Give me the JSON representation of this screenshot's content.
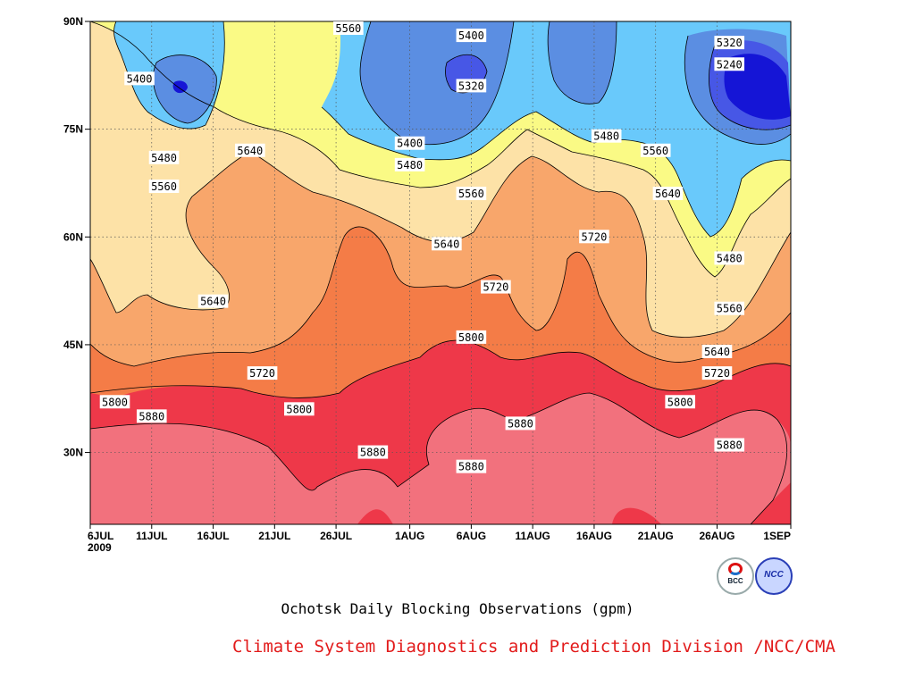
{
  "chart_data": {
    "type": "contour",
    "xlabel": "",
    "ylabel": "",
    "x_ticks": [
      "6JUL",
      "11JUL",
      "16JUL",
      "21JUL",
      "26JUL",
      "1AUG",
      "6AUG",
      "11AUG",
      "16AUG",
      "21AUG",
      "26AUG",
      "1SEP"
    ],
    "x_year_label": "2009",
    "y_ticks": [
      "90N",
      "75N",
      "60N",
      "45N",
      "30N"
    ],
    "ylim": [
      20,
      90
    ],
    "grid": true,
    "levels": [
      5240,
      5320,
      5400,
      5480,
      5560,
      5640,
      5720,
      5800,
      5880
    ],
    "band_colors": {
      "lt5240": "#1515d6",
      "5240_5320": "#4757e6",
      "5320_5400": "#5b8ee2",
      "5400_5480": "#69c9fb",
      "5480_5560": "#fafa85",
      "5560_5640": "#fde2a7",
      "5640_5720": "#f8a66b",
      "5720_5800": "#f47c47",
      "5800_5880": "#f2717d",
      "gt5880": "#ee3849"
    },
    "contour_labels": [
      {
        "text": "5400",
        "x": "10JUL",
        "y": 82
      },
      {
        "text": "5480",
        "x": "12JUL",
        "y": 71
      },
      {
        "text": "5560",
        "x": "12JUL",
        "y": 67
      },
      {
        "text": "5640",
        "x": "19JUL",
        "y": 72
      },
      {
        "text": "5640",
        "x": "16JUL",
        "y": 51
      },
      {
        "text": "5720",
        "x": "20JUL",
        "y": 41
      },
      {
        "text": "5800",
        "x": "8JUL",
        "y": 37
      },
      {
        "text": "5880",
        "x": "11JUL",
        "y": 35
      },
      {
        "text": "5800",
        "x": "23JUL",
        "y": 36
      },
      {
        "text": "5560",
        "x": "27JUL",
        "y": 89
      },
      {
        "text": "5880",
        "x": "29JUL",
        "y": 30
      },
      {
        "text": "5400",
        "x": "6AUG",
        "y": 88
      },
      {
        "text": "5320",
        "x": "6AUG",
        "y": 81
      },
      {
        "text": "5400",
        "x": "1AUG",
        "y": 73
      },
      {
        "text": "5480",
        "x": "1AUG",
        "y": 70
      },
      {
        "text": "5560",
        "x": "6AUG",
        "y": 66
      },
      {
        "text": "5640",
        "x": "4AUG",
        "y": 59
      },
      {
        "text": "5720",
        "x": "8AUG",
        "y": 53
      },
      {
        "text": "5800",
        "x": "6AUG",
        "y": 46
      },
      {
        "text": "5880",
        "x": "10AUG",
        "y": 34
      },
      {
        "text": "5880",
        "x": "6AUG",
        "y": 28
      },
      {
        "text": "5720",
        "x": "16AUG",
        "y": 60
      },
      {
        "text": "5480",
        "x": "17AUG",
        "y": 74
      },
      {
        "text": "5560",
        "x": "21AUG",
        "y": 72
      },
      {
        "text": "5640",
        "x": "22AUG",
        "y": 66
      },
      {
        "text": "5800",
        "x": "23AUG",
        "y": 37
      },
      {
        "text": "5880",
        "x": "27AUG",
        "y": 31
      },
      {
        "text": "5480",
        "x": "27AUG",
        "y": 57
      },
      {
        "text": "5560",
        "x": "27AUG",
        "y": 50
      },
      {
        "text": "5640",
        "x": "26AUG",
        "y": 44
      },
      {
        "text": "5720",
        "x": "26AUG",
        "y": 41
      },
      {
        "text": "5320",
        "x": "27AUG",
        "y": 87
      },
      {
        "text": "5240",
        "x": "27AUG",
        "y": 84
      }
    ]
  },
  "captions": {
    "title": "Ochotsk Daily Blocking Observations (gpm)",
    "credit": "Climate System Diagnostics and Prediction Division /NCC/CMA",
    "credit_color": "#e21b1b"
  },
  "logos": {
    "bcc": "BCC",
    "ncc": "NCC"
  }
}
